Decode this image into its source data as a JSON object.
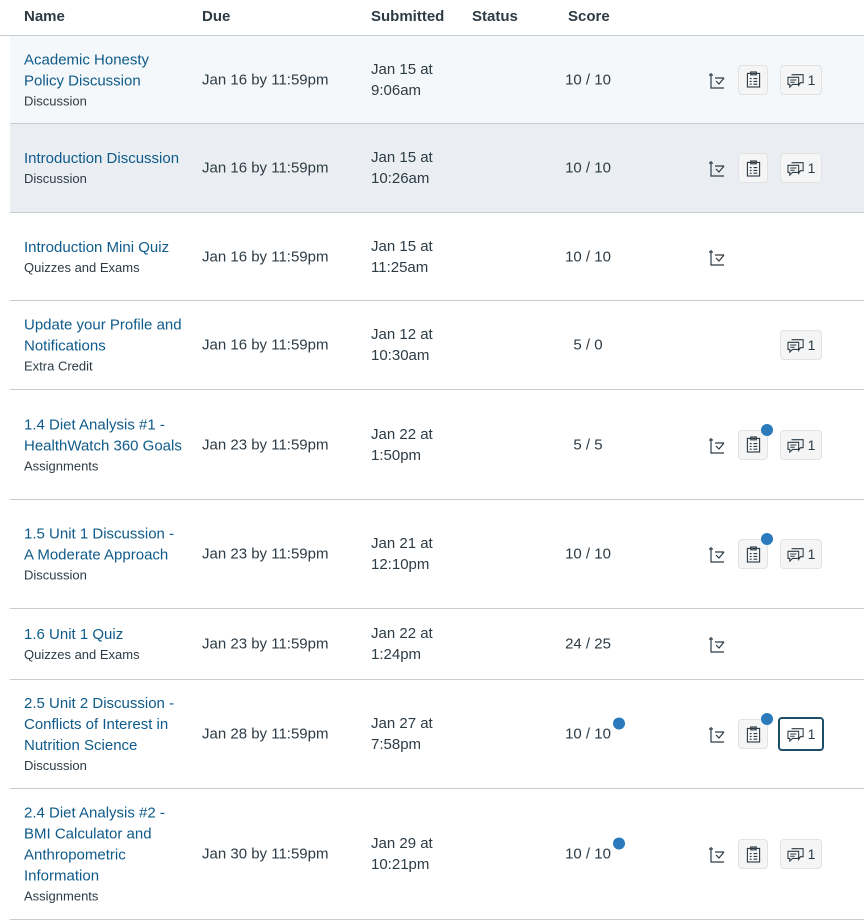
{
  "headers": {
    "name": "Name",
    "due": "Due",
    "submitted": "Submitted",
    "status": "Status",
    "score": "Score"
  },
  "accent": "#2b7abc",
  "rows": [
    {
      "title": "Academic Honesty Policy Discussion",
      "type": "Discussion",
      "due": "Jan 16 by 11:59pm",
      "submitted": "Jan 15 at 9:06am",
      "score": "10 / 10",
      "whatif": true,
      "rubric": true,
      "rubric_dot": false,
      "comments": "1",
      "comments_focused": false,
      "score_dot": false,
      "highlight": "hl1",
      "h": 88
    },
    {
      "title": "Introduction Discussion",
      "type": "Discussion",
      "due": "Jan 16 by 11:59pm",
      "submitted": "Jan 15 at 10:26am",
      "score": "10 / 10",
      "whatif": true,
      "rubric": true,
      "rubric_dot": false,
      "comments": "1",
      "comments_focused": false,
      "score_dot": false,
      "highlight": "hl2",
      "h": 89
    },
    {
      "title": "Introduction Mini Quiz",
      "type": "Quizzes and Exams",
      "due": "Jan 16 by 11:59pm",
      "submitted": "Jan 15 at 11:25am",
      "score": "10 / 10",
      "whatif": true,
      "rubric": false,
      "rubric_dot": false,
      "comments": null,
      "comments_focused": false,
      "score_dot": false,
      "highlight": "",
      "h": 88
    },
    {
      "title": "Update your Profile and Notifications",
      "type": "Extra Credit",
      "due": "Jan 16 by 11:59pm",
      "submitted": "Jan 12 at 10:30am",
      "score": "5 / 0",
      "whatif": false,
      "rubric": false,
      "rubric_dot": false,
      "comments": "1",
      "comments_focused": false,
      "score_dot": false,
      "highlight": "",
      "h": 89
    },
    {
      "title": "1.4 Diet Analysis #1 - HealthWatch 360 Goals",
      "type": "Assignments",
      "due": "Jan 23 by 11:59pm",
      "submitted": "Jan 22 at 1:50pm",
      "score": "5 / 5",
      "whatif": true,
      "rubric": true,
      "rubric_dot": true,
      "comments": "1",
      "comments_focused": false,
      "score_dot": false,
      "highlight": "",
      "h": 110
    },
    {
      "title": "1.5 Unit 1 Discussion - A Moderate Approach",
      "type": "Discussion",
      "due": "Jan 23 by 11:59pm",
      "submitted": "Jan 21 at 12:10pm",
      "score": "10 / 10",
      "whatif": true,
      "rubric": true,
      "rubric_dot": true,
      "comments": "1",
      "comments_focused": false,
      "score_dot": false,
      "highlight": "",
      "h": 109
    },
    {
      "title": "1.6 Unit 1 Quiz",
      "type": "Quizzes and Exams",
      "due": "Jan 23 by 11:59pm",
      "submitted": "Jan 22 at 1:24pm",
      "score": "24 / 25",
      "whatif": true,
      "rubric": false,
      "rubric_dot": false,
      "comments": null,
      "comments_focused": false,
      "score_dot": false,
      "highlight": "",
      "h": 71
    },
    {
      "title": "2.5 Unit 2 Discussion - Conflicts of Interest in Nutrition Science",
      "type": "Discussion",
      "due": "Jan 28 by 11:59pm",
      "submitted": "Jan 27 at 7:58pm",
      "score": "10 / 10",
      "whatif": true,
      "rubric": true,
      "rubric_dot": true,
      "comments": "1",
      "comments_focused": true,
      "score_dot": true,
      "highlight": "",
      "h": 109
    },
    {
      "title": "2.4 Diet Analysis #2 - BMI Calculator and Anthropometric Information",
      "type": "Assignments",
      "due": "Jan 30 by 11:59pm",
      "submitted": "Jan 29 at 10:21pm",
      "score": "10 / 10",
      "whatif": true,
      "rubric": true,
      "rubric_dot": false,
      "comments": "1",
      "comments_focused": false,
      "score_dot": true,
      "highlight": "",
      "h": 131
    }
  ]
}
